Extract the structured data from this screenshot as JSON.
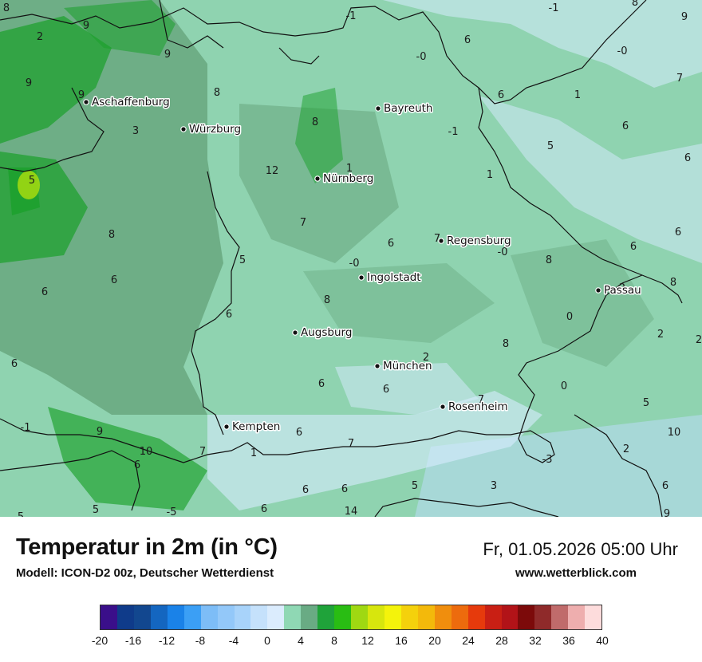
{
  "map": {
    "cities": [
      {
        "name": "Aschaffenburg",
        "key": "aschaffenburg"
      },
      {
        "name": "Würzburg",
        "key": "wuerzburg"
      },
      {
        "name": "Bayreuth",
        "key": "bayreuth"
      },
      {
        "name": "Nürnberg",
        "key": "nuernberg"
      },
      {
        "name": "Regensburg",
        "key": "regensburg"
      },
      {
        "name": "Ingolstadt",
        "key": "ingolstadt"
      },
      {
        "name": "Passau",
        "key": "passau"
      },
      {
        "name": "Augsburg",
        "key": "augsburg"
      },
      {
        "name": "München",
        "key": "muenchen"
      },
      {
        "name": "Rosenheim",
        "key": "rosenheim"
      },
      {
        "name": "Kempten",
        "key": "kempten"
      }
    ],
    "values": [
      "8",
      "9",
      "-1",
      "-1",
      "8",
      "9",
      "2",
      "9",
      "-0",
      "9",
      "6",
      "-0",
      "7",
      "9",
      "8",
      "6",
      "1",
      "6",
      "8",
      "-1",
      "5",
      "3",
      "6",
      "8",
      "5",
      "12",
      "1",
      "1",
      "7",
      "6",
      "-0",
      "8",
      "7",
      "6",
      "5",
      "-0",
      "6",
      "8",
      "6",
      "6",
      "2",
      "8",
      "6",
      "0",
      "2",
      "8",
      "2",
      "6",
      "2",
      "6",
      "6",
      "0",
      "5",
      "7",
      "-1",
      "6",
      "9",
      "7",
      "10",
      "2",
      "10",
      "7",
      "1",
      "6",
      "6",
      "5",
      "-3",
      "6",
      "3",
      "6",
      "6",
      "5",
      "-5",
      "14",
      "9",
      "5"
    ],
    "colors": {
      "ocean": "#97dcbe",
      "dark": "#6aaa82",
      "mid": "#86c9a0",
      "green": "#1aa02a",
      "pale": "#d7ecff",
      "lightblue": "#bcdcf8"
    }
  },
  "header": {
    "title": "Temperatur in 2m (in °C)",
    "subtitle": "Modell: ICON-D2 00z, Deutscher Wetterdienst",
    "date": "Fr, 01.05.2026 05:00 Uhr",
    "website": "www.wetterblick.com"
  },
  "legend": {
    "colors": [
      "#3a0f8a",
      "#0f3b8a",
      "#12478f",
      "#1466c0",
      "#1a82e8",
      "#3b9ff5",
      "#7dbdf7",
      "#93c8f9",
      "#a8d3fa",
      "#c5e1fb",
      "#dbecfd",
      "#8fd8b4",
      "#69ab84",
      "#1fa33a",
      "#29bd13",
      "#9fd812",
      "#d7e60d",
      "#f4f30b",
      "#f4d10c",
      "#f3b90b",
      "#f08e0d",
      "#ed6b0d",
      "#e63a0c",
      "#c91f14",
      "#b21318",
      "#7c0a0a",
      "#8f2a2a",
      "#c06b6b",
      "#eeaeae",
      "#fddcdc"
    ],
    "ticks": [
      "-20",
      "-16",
      "-12",
      "-8",
      "-4",
      "0",
      "4",
      "8",
      "12",
      "16",
      "20",
      "24",
      "28",
      "32",
      "36",
      "40"
    ]
  }
}
